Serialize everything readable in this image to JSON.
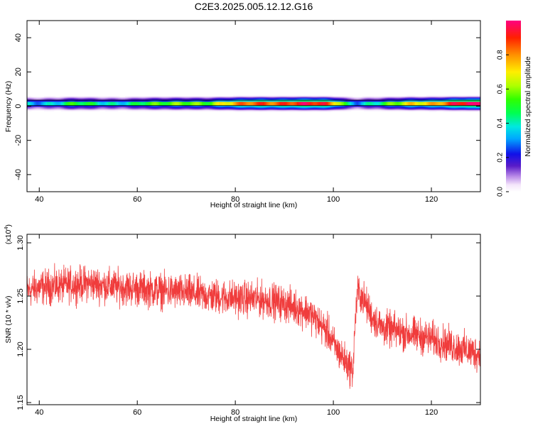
{
  "title": "C2E3.2025.005.12.12.G16",
  "chart_data": [
    {
      "type": "heatmap",
      "xlabel": "Height of straight line (km)",
      "ylabel": "Frequency (Hz)",
      "xlim": [
        37.5,
        130
      ],
      "ylim": [
        -50,
        50
      ],
      "xticks": [
        40,
        60,
        80,
        100,
        120
      ],
      "yticks": [
        -40,
        -20,
        0,
        20,
        40
      ],
      "colorbar": {
        "label": "Normalized spectral amplitude",
        "range": [
          0,
          1
        ],
        "ticks": [
          0.0,
          0.2,
          0.4,
          0.6,
          0.8
        ]
      },
      "band": {
        "center_freq": 1.5,
        "profile": [
          [
            38,
            0.35
          ],
          [
            41,
            0.38
          ],
          [
            44,
            0.4
          ],
          [
            47,
            0.48
          ],
          [
            50,
            0.42
          ],
          [
            53,
            0.4
          ],
          [
            56,
            0.42
          ],
          [
            59,
            0.45
          ],
          [
            62,
            0.5
          ],
          [
            65,
            0.48
          ],
          [
            68,
            0.55
          ],
          [
            71,
            0.62
          ],
          [
            74,
            0.58
          ],
          [
            77,
            0.66
          ],
          [
            80,
            0.72
          ],
          [
            83,
            0.82
          ],
          [
            86,
            0.88
          ],
          [
            89,
            0.9
          ],
          [
            92,
            0.92
          ],
          [
            95,
            0.9
          ],
          [
            98,
            0.85
          ],
          [
            101,
            0.7
          ],
          [
            103,
            0.42
          ],
          [
            105,
            0.36
          ],
          [
            107,
            0.4
          ],
          [
            110,
            0.45
          ],
          [
            113,
            0.55
          ],
          [
            116,
            0.7
          ],
          [
            119,
            0.75
          ],
          [
            122,
            0.85
          ],
          [
            125,
            0.92
          ],
          [
            128,
            0.95
          ],
          [
            130,
            0.95
          ]
        ]
      }
    },
    {
      "type": "line",
      "xlabel": "Height of straight line (km)",
      "ylabel": "SNR (10 * v/v)",
      "yscale_label": "(x10",
      "yscale_exp": "4",
      "yscale_close": ")",
      "xlim": [
        37.5,
        130
      ],
      "ylim": [
        1.148,
        1.308
      ],
      "xticks": [
        40,
        60,
        80,
        100,
        120
      ],
      "yticks": [
        1.15,
        1.2,
        1.25,
        1.3
      ],
      "ytick_labels": [
        "1.15",
        "1.20",
        "1.25",
        "1.30"
      ],
      "color": "#f03c3c",
      "series": [
        {
          "x": [
            37.5,
            40,
            45,
            50,
            55,
            60,
            65,
            70,
            75,
            80,
            85,
            88,
            92,
            95,
            97,
            99,
            100,
            101,
            102,
            103,
            104,
            104.5,
            105,
            106,
            108,
            110,
            115,
            120,
            125,
            130
          ],
          "y": [
            1.255,
            1.258,
            1.26,
            1.262,
            1.259,
            1.257,
            1.255,
            1.253,
            1.25,
            1.248,
            1.247,
            1.245,
            1.24,
            1.235,
            1.225,
            1.215,
            1.205,
            1.198,
            1.192,
            1.185,
            1.18,
            1.23,
            1.255,
            1.248,
            1.23,
            1.22,
            1.215,
            1.21,
            1.202,
            1.195
          ]
        }
      ],
      "noise_amplitude": 0.024,
      "point_count": 2400
    }
  ]
}
